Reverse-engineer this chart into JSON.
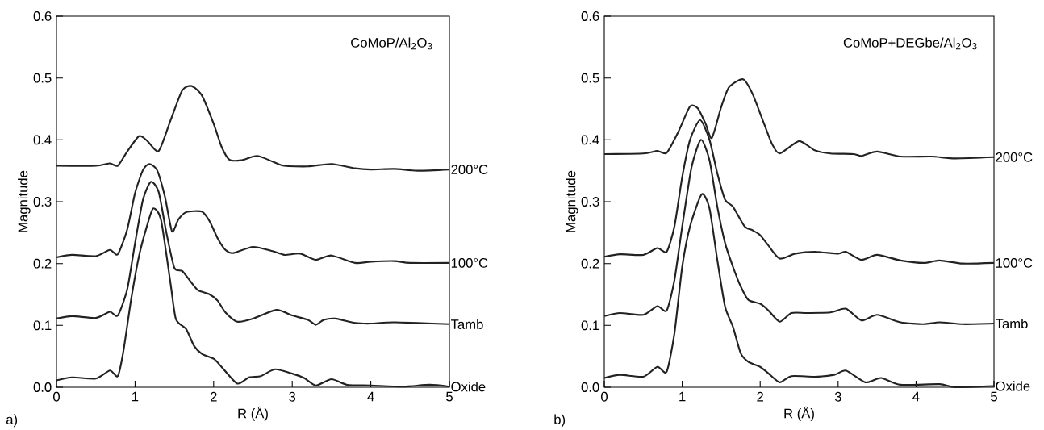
{
  "chart_data": [
    {
      "type": "line",
      "title": "CoMoP/Al$_{2}$O$_{3}$",
      "xlabel": "R (Å)",
      "ylabel": "Magnitude",
      "annotations": [
        "a)"
      ],
      "xlim": [
        0,
        5
      ],
      "ylim": [
        0,
        0.6
      ],
      "xticks": [
        0,
        1,
        2,
        3,
        4,
        5
      ],
      "yticks": [
        {
          "value": 0,
          "label": "0.0"
        },
        0.1,
        0.2,
        0.3,
        0.4,
        0.5,
        0.6
      ],
      "marker": "none",
      "line_style": "solid",
      "legend": false,
      "grid": false,
      "series": [
        {
          "name": "200°C",
          "color": "#222222",
          "x": [
            0,
            0.5,
            0.68,
            0.78,
            0.9,
            1.05,
            1.15,
            1.3,
            1.45,
            1.6,
            1.72,
            1.85,
            2.0,
            2.1,
            2.2,
            2.35,
            2.55,
            2.75,
            2.9,
            3.2,
            3.5,
            3.8,
            4.0,
            4.3,
            4.6,
            5.0
          ],
          "values": [
            0.358,
            0.358,
            0.362,
            0.358,
            0.381,
            0.406,
            0.399,
            0.382,
            0.431,
            0.48,
            0.487,
            0.472,
            0.426,
            0.389,
            0.368,
            0.367,
            0.374,
            0.365,
            0.358,
            0.357,
            0.361,
            0.354,
            0.352,
            0.353,
            0.35,
            0.352
          ]
        },
        {
          "name": "100°C",
          "color": "#222222",
          "x": [
            0,
            0.2,
            0.5,
            0.68,
            0.78,
            0.9,
            1.0,
            1.1,
            1.18,
            1.28,
            1.38,
            1.47,
            1.55,
            1.65,
            1.85,
            1.95,
            2.05,
            2.15,
            2.25,
            2.5,
            2.75,
            2.9,
            3.1,
            3.3,
            3.5,
            3.8,
            4.0,
            4.3,
            4.5,
            5.0
          ],
          "values": [
            0.21,
            0.214,
            0.212,
            0.222,
            0.215,
            0.255,
            0.314,
            0.351,
            0.361,
            0.351,
            0.308,
            0.252,
            0.271,
            0.283,
            0.284,
            0.268,
            0.241,
            0.222,
            0.217,
            0.227,
            0.22,
            0.214,
            0.216,
            0.206,
            0.213,
            0.201,
            0.203,
            0.204,
            0.201,
            0.201
          ]
        },
        {
          "name": "Tamb",
          "color": "#222222",
          "x": [
            0,
            0.2,
            0.5,
            0.68,
            0.78,
            0.9,
            1.0,
            1.1,
            1.2,
            1.3,
            1.4,
            1.5,
            1.6,
            1.7,
            1.8,
            1.95,
            2.05,
            2.15,
            2.3,
            2.5,
            2.8,
            3.0,
            3.2,
            3.3,
            3.4,
            3.55,
            3.8,
            4.0,
            4.3,
            5.0
          ],
          "values": [
            0.111,
            0.115,
            0.112,
            0.122,
            0.116,
            0.158,
            0.233,
            0.303,
            0.332,
            0.316,
            0.249,
            0.193,
            0.188,
            0.172,
            0.157,
            0.15,
            0.14,
            0.121,
            0.106,
            0.111,
            0.125,
            0.116,
            0.109,
            0.101,
            0.109,
            0.111,
            0.104,
            0.103,
            0.105,
            0.102
          ]
        },
        {
          "name": "Oxide",
          "color": "#222222",
          "x": [
            0,
            0.2,
            0.5,
            0.68,
            0.78,
            0.85,
            0.95,
            1.05,
            1.15,
            1.23,
            1.33,
            1.45,
            1.52,
            1.65,
            1.75,
            1.85,
            2.0,
            2.1,
            2.3,
            2.45,
            2.6,
            2.78,
            3.0,
            3.15,
            3.3,
            3.5,
            3.7,
            4.0,
            4.4,
            4.75,
            5.0
          ],
          "values": [
            0.011,
            0.016,
            0.014,
            0.027,
            0.018,
            0.057,
            0.142,
            0.212,
            0.26,
            0.289,
            0.271,
            0.169,
            0.11,
            0.094,
            0.067,
            0.054,
            0.046,
            0.033,
            0.006,
            0.016,
            0.018,
            0.029,
            0.022,
            0.015,
            0.003,
            0.013,
            0.004,
            0.003,
            0.001,
            0.004,
            0.001
          ]
        }
      ]
    },
    {
      "type": "line",
      "title": "CoMoP+DEGbe/Al$_{2}$O$_{3}$",
      "xlabel": "R (Å)",
      "ylabel": "Magnitude",
      "annotations": [
        "b)"
      ],
      "xlim": [
        0,
        5
      ],
      "ylim": [
        0,
        0.6
      ],
      "xticks": [
        0,
        1,
        2,
        3,
        4,
        5
      ],
      "yticks": [
        {
          "value": 0,
          "label": "0.0"
        },
        0.1,
        0.2,
        0.3,
        0.4,
        0.5,
        0.6
      ],
      "marker": "none",
      "line_style": "solid",
      "legend": false,
      "grid": false,
      "series": [
        {
          "name": "200°C",
          "color": "#222222",
          "x": [
            0,
            0.5,
            0.68,
            0.8,
            0.95,
            1.1,
            1.2,
            1.3,
            1.38,
            1.5,
            1.6,
            1.78,
            1.9,
            2.05,
            2.15,
            2.25,
            2.5,
            2.7,
            2.9,
            3.2,
            3.3,
            3.5,
            3.8,
            4.2,
            4.5,
            5.0
          ],
          "values": [
            0.377,
            0.378,
            0.382,
            0.379,
            0.413,
            0.454,
            0.451,
            0.426,
            0.403,
            0.453,
            0.485,
            0.498,
            0.475,
            0.426,
            0.394,
            0.378,
            0.398,
            0.383,
            0.378,
            0.377,
            0.374,
            0.381,
            0.373,
            0.373,
            0.37,
            0.372
          ]
        },
        {
          "name": "100°C",
          "color": "#222222",
          "x": [
            0,
            0.2,
            0.5,
            0.68,
            0.8,
            0.9,
            1.0,
            1.1,
            1.23,
            1.35,
            1.45,
            1.55,
            1.65,
            1.8,
            1.9,
            2.0,
            2.1,
            2.25,
            2.45,
            2.7,
            3.0,
            3.1,
            3.3,
            3.5,
            3.8,
            4.1,
            4.3,
            4.6,
            5.0
          ],
          "values": [
            0.211,
            0.215,
            0.214,
            0.225,
            0.219,
            0.26,
            0.34,
            0.4,
            0.432,
            0.4,
            0.346,
            0.303,
            0.292,
            0.26,
            0.254,
            0.246,
            0.23,
            0.208,
            0.216,
            0.219,
            0.216,
            0.219,
            0.206,
            0.214,
            0.205,
            0.201,
            0.205,
            0.2,
            0.201
          ]
        },
        {
          "name": "Tamb",
          "color": "#222222",
          "x": [
            0,
            0.2,
            0.5,
            0.68,
            0.8,
            0.9,
            1.0,
            1.12,
            1.24,
            1.35,
            1.45,
            1.55,
            1.65,
            1.75,
            1.85,
            2.0,
            2.1,
            2.25,
            2.4,
            2.6,
            2.9,
            3.1,
            3.3,
            3.5,
            3.8,
            4.1,
            4.3,
            4.6,
            5.0
          ],
          "values": [
            0.115,
            0.12,
            0.117,
            0.131,
            0.124,
            0.173,
            0.26,
            0.356,
            0.4,
            0.367,
            0.292,
            0.233,
            0.195,
            0.163,
            0.141,
            0.135,
            0.125,
            0.106,
            0.12,
            0.12,
            0.121,
            0.127,
            0.108,
            0.117,
            0.105,
            0.102,
            0.105,
            0.102,
            0.103
          ]
        },
        {
          "name": "Oxide",
          "color": "#222222",
          "x": [
            0,
            0.2,
            0.5,
            0.68,
            0.8,
            0.9,
            1.0,
            1.1,
            1.25,
            1.35,
            1.45,
            1.55,
            1.65,
            1.75,
            1.85,
            2.0,
            2.1,
            2.25,
            2.4,
            2.7,
            2.95,
            3.1,
            3.35,
            3.55,
            3.8,
            4.3,
            4.5,
            5.0
          ],
          "values": [
            0.015,
            0.02,
            0.017,
            0.033,
            0.025,
            0.087,
            0.195,
            0.26,
            0.312,
            0.289,
            0.206,
            0.13,
            0.098,
            0.055,
            0.041,
            0.033,
            0.023,
            0.008,
            0.018,
            0.017,
            0.02,
            0.027,
            0.008,
            0.015,
            0.004,
            0.005,
            0.0,
            0.002
          ]
        }
      ]
    }
  ]
}
